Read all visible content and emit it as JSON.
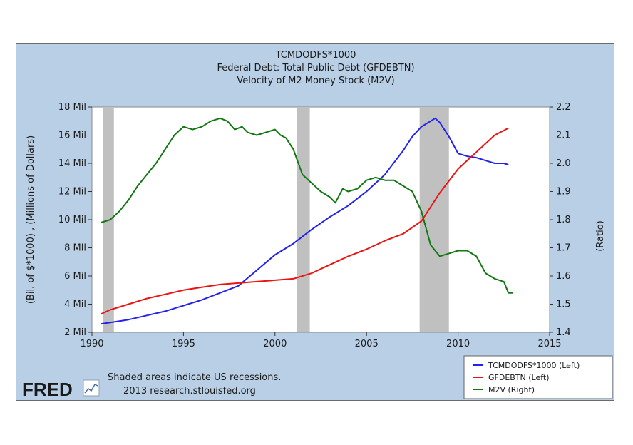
{
  "chart_data": {
    "type": "line",
    "title_lines": [
      "TCMDODFS*1000",
      "Federal Debt: Total Public Debt (GFDEBTN)",
      "Velocity of M2 Money Stock (M2V)"
    ],
    "ylabel_left": "(Bil. of $*1000) , (Millions of Dollars)",
    "ylabel_right": "(Ratio)",
    "xlim": [
      1990,
      2015
    ],
    "ylim_left": [
      2,
      18
    ],
    "ylim_right": [
      1.4,
      2.2
    ],
    "x_ticks": [
      "1990",
      "1995",
      "2000",
      "2005",
      "2010",
      "2015"
    ],
    "y_ticks_left": [
      "2 Mil",
      "4 Mil",
      "6 Mil",
      "8 Mil",
      "10 Mil",
      "12 Mil",
      "14 Mil",
      "16 Mil",
      "18 Mil"
    ],
    "y_ticks_right": [
      "1.4",
      "1.5",
      "1.6",
      "1.7",
      "1.8",
      "1.9",
      "2.0",
      "2.1",
      "2.2"
    ],
    "recessions": [
      [
        1990.6,
        1991.2
      ],
      [
        2001.2,
        2001.9
      ],
      [
        2007.9,
        2009.5
      ]
    ],
    "series": [
      {
        "name": "TCMDODFS*1000 (Left)",
        "color": "#2222ee",
        "axis": "left",
        "x": [
          1990.5,
          1991,
          1992,
          1993,
          1994,
          1995,
          1996,
          1997,
          1998,
          1999,
          2000,
          2001,
          2002,
          2003,
          2004,
          2005,
          2006,
          2007,
          2007.5,
          2008,
          2008.5,
          2008.75,
          2009,
          2009.5,
          2010,
          2010.5,
          2011,
          2011.5,
          2012,
          2012.5,
          2012.75
        ],
        "values": [
          2.6,
          2.7,
          2.9,
          3.2,
          3.5,
          3.9,
          4.3,
          4.8,
          5.3,
          6.4,
          7.5,
          8.3,
          9.3,
          10.2,
          11.0,
          12.0,
          13.2,
          14.9,
          15.9,
          16.6,
          17.0,
          17.2,
          16.9,
          15.9,
          14.7,
          14.5,
          14.4,
          14.2,
          14.0,
          14.0,
          13.9
        ]
      },
      {
        "name": "GFDEBTN (Left)",
        "color": "#ee1111",
        "axis": "left",
        "x": [
          1990.5,
          1991,
          1992,
          1993,
          1994,
          1995,
          1996,
          1997,
          1998,
          1999,
          2000,
          2001,
          2002,
          2003,
          2004,
          2005,
          2006,
          2007,
          2008,
          2009,
          2010,
          2011,
          2012,
          2012.75
        ],
        "values": [
          3.3,
          3.6,
          4.0,
          4.4,
          4.7,
          5.0,
          5.2,
          5.4,
          5.5,
          5.6,
          5.7,
          5.8,
          6.2,
          6.8,
          7.4,
          7.9,
          8.5,
          9.0,
          9.9,
          11.9,
          13.6,
          14.8,
          16.0,
          16.5
        ]
      },
      {
        "name": "M2V (Right)",
        "color": "#117711",
        "axis": "right",
        "x": [
          1990.5,
          1991,
          1991.5,
          1992,
          1992.5,
          1993,
          1993.5,
          1994,
          1994.5,
          1995,
          1995.5,
          1996,
          1996.5,
          1997,
          1997.4,
          1997.8,
          1998.2,
          1998.5,
          1999,
          1999.5,
          2000,
          2000.3,
          2000.6,
          2001,
          2001.5,
          2002,
          2002.5,
          2003,
          2003.3,
          2003.7,
          2004,
          2004.5,
          2005,
          2005.5,
          2006,
          2006.5,
          2007,
          2007.5,
          2008,
          2008.5,
          2009,
          2009.5,
          2010,
          2010.5,
          2011,
          2011.5,
          2012,
          2012.5,
          2012.75,
          2013
        ],
        "values": [
          1.79,
          1.8,
          1.83,
          1.87,
          1.92,
          1.96,
          2.0,
          2.05,
          2.1,
          2.13,
          2.12,
          2.13,
          2.15,
          2.16,
          2.15,
          2.12,
          2.13,
          2.11,
          2.1,
          2.11,
          2.12,
          2.1,
          2.09,
          2.05,
          1.96,
          1.93,
          1.9,
          1.88,
          1.86,
          1.91,
          1.9,
          1.91,
          1.94,
          1.95,
          1.94,
          1.94,
          1.92,
          1.9,
          1.83,
          1.71,
          1.67,
          1.68,
          1.69,
          1.69,
          1.67,
          1.61,
          1.59,
          1.58,
          1.54,
          1.54
        ]
      }
    ],
    "legend_placement": "bottom-right",
    "grid": false
  },
  "footer": {
    "logo": "FRED",
    "note_line1": "Shaded areas indicate US recessions.",
    "note_line2": "2013 research.stlouisfed.org"
  }
}
